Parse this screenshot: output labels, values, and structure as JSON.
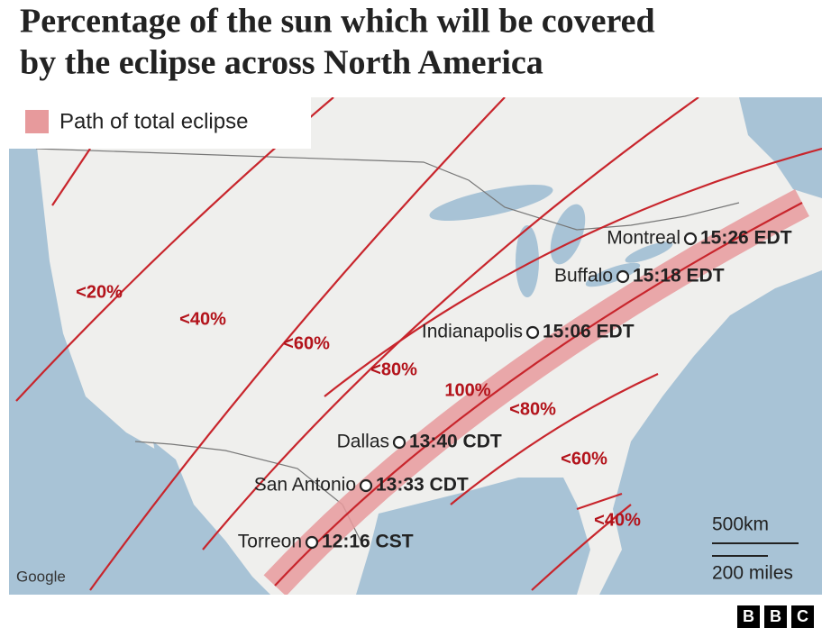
{
  "title": [
    "Percentage of the sun which will be covered",
    "by the eclipse across North America"
  ],
  "legend": {
    "label": "Path of total eclipse"
  },
  "zones": [
    "<20%",
    "<40%",
    "<60%",
    "<80%",
    "100%",
    "<80%",
    "<60%",
    "<40%"
  ],
  "cities": [
    {
      "name": "Montreal",
      "time": "15:26 EDT"
    },
    {
      "name": "Buffalo",
      "time": "15:18 EDT"
    },
    {
      "name": "Indianapolis",
      "time": "15:06 EDT"
    },
    {
      "name": "Dallas",
      "time": "13:40 CDT"
    },
    {
      "name": "San Antonio",
      "time": "13:33 CDT"
    },
    {
      "name": "Torreon",
      "time": "12:16 CST"
    }
  ],
  "scale": {
    "km": "500km",
    "miles": "200 miles"
  },
  "attribution": "Google",
  "logo": [
    "B",
    "B",
    "C"
  ]
}
